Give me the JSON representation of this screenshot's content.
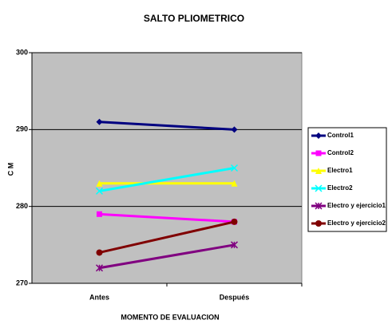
{
  "chart_data": {
    "type": "line",
    "title": "SALTO PLIOMETRICO",
    "x_label": "MOMENTO DE EVALUACION",
    "y_label": "C M",
    "categories": [
      "Antes",
      "Después"
    ],
    "series": [
      {
        "name": "Control1",
        "color": "#000080",
        "marker": "diamond",
        "values": [
          291,
          290
        ]
      },
      {
        "name": "Control2",
        "color": "#ff00ff",
        "marker": "square",
        "values": [
          279,
          278
        ]
      },
      {
        "name": "Electro1",
        "color": "#ffff00",
        "marker": "triangle",
        "values": [
          283,
          283
        ]
      },
      {
        "name": "Electro2",
        "color": "#00ffff",
        "marker": "x",
        "values": [
          282,
          285
        ]
      },
      {
        "name": "Electro y ejercicio1",
        "color": "#800080",
        "marker": "star",
        "values": [
          272,
          275
        ]
      },
      {
        "name": "Electro y ejercicio2",
        "color": "#800000",
        "marker": "circle",
        "values": [
          274,
          278
        ]
      }
    ],
    "ylim": [
      270,
      300
    ],
    "yticks": [
      270,
      280,
      290,
      300
    ],
    "grid": true,
    "legend": "right"
  }
}
